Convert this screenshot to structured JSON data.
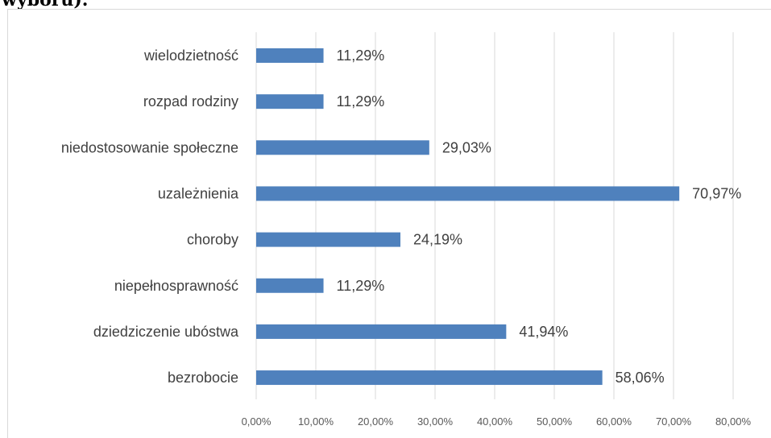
{
  "page": {
    "title": "wyboru)."
  },
  "chart_data": {
    "type": "bar",
    "orientation": "horizontal",
    "categories": [
      "wielodzietność",
      "rozpad rodziny",
      "niedostosowanie społeczne",
      "uzależnienia",
      "choroby",
      "niepełnosprawność",
      "dziedziczenie ubóstwa",
      "bezrobocie"
    ],
    "values": [
      11.29,
      11.29,
      29.03,
      70.97,
      24.19,
      11.29,
      41.94,
      58.06
    ],
    "value_labels": [
      "11,29%",
      "11,29%",
      "29,03%",
      "70,97%",
      "24,19%",
      "11,29%",
      "41,94%",
      "58,06%"
    ],
    "xlim": [
      0,
      80
    ],
    "x_ticks": [
      0,
      10,
      20,
      30,
      40,
      50,
      60,
      70,
      80
    ],
    "x_tick_labels": [
      "0,00%",
      "10,00%",
      "20,00%",
      "30,00%",
      "40,00%",
      "50,00%",
      "60,00%",
      "70,00%",
      "80,00%"
    ],
    "grid": "vertical",
    "bar_color": "#4f81bd",
    "grid_color": "#d9d9d9"
  }
}
